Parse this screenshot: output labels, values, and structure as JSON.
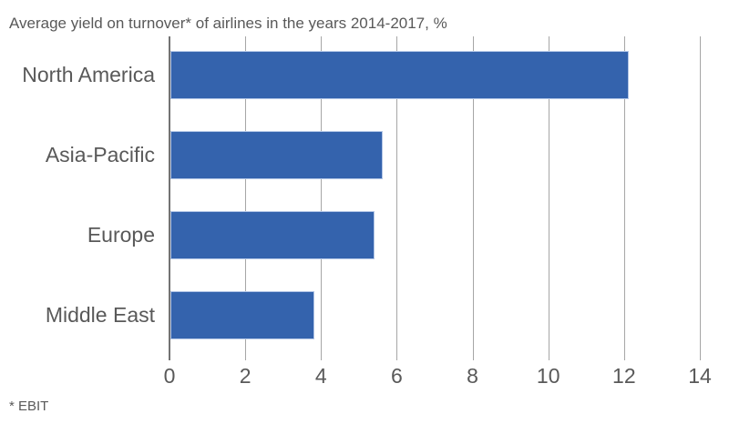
{
  "chart": {
    "title": "Average yield on turnover* of airlines in the years 2014-2017, %",
    "footnote": "* EBIT"
  },
  "chart_data": {
    "type": "bar",
    "orientation": "horizontal",
    "title": "Average yield on turnover* of airlines in the years 2014-2017, %",
    "footnote": "* EBIT",
    "categories": [
      "North America",
      "Asia-Pacific",
      "Europe",
      "Middle East"
    ],
    "values": [
      12.1,
      5.6,
      5.4,
      3.8
    ],
    "xlabel": "",
    "ylabel": "",
    "xlim": [
      0,
      14
    ],
    "xticks": [
      0,
      2,
      4,
      6,
      8,
      10,
      12,
      14
    ],
    "grid": true,
    "legend": "none",
    "colors": {
      "bar_fill": "#3463AD",
      "bar_edge": "#B3C6E6",
      "gridline": "#A6A6A6",
      "zero_axis": "#737373",
      "text": "#595959"
    }
  }
}
